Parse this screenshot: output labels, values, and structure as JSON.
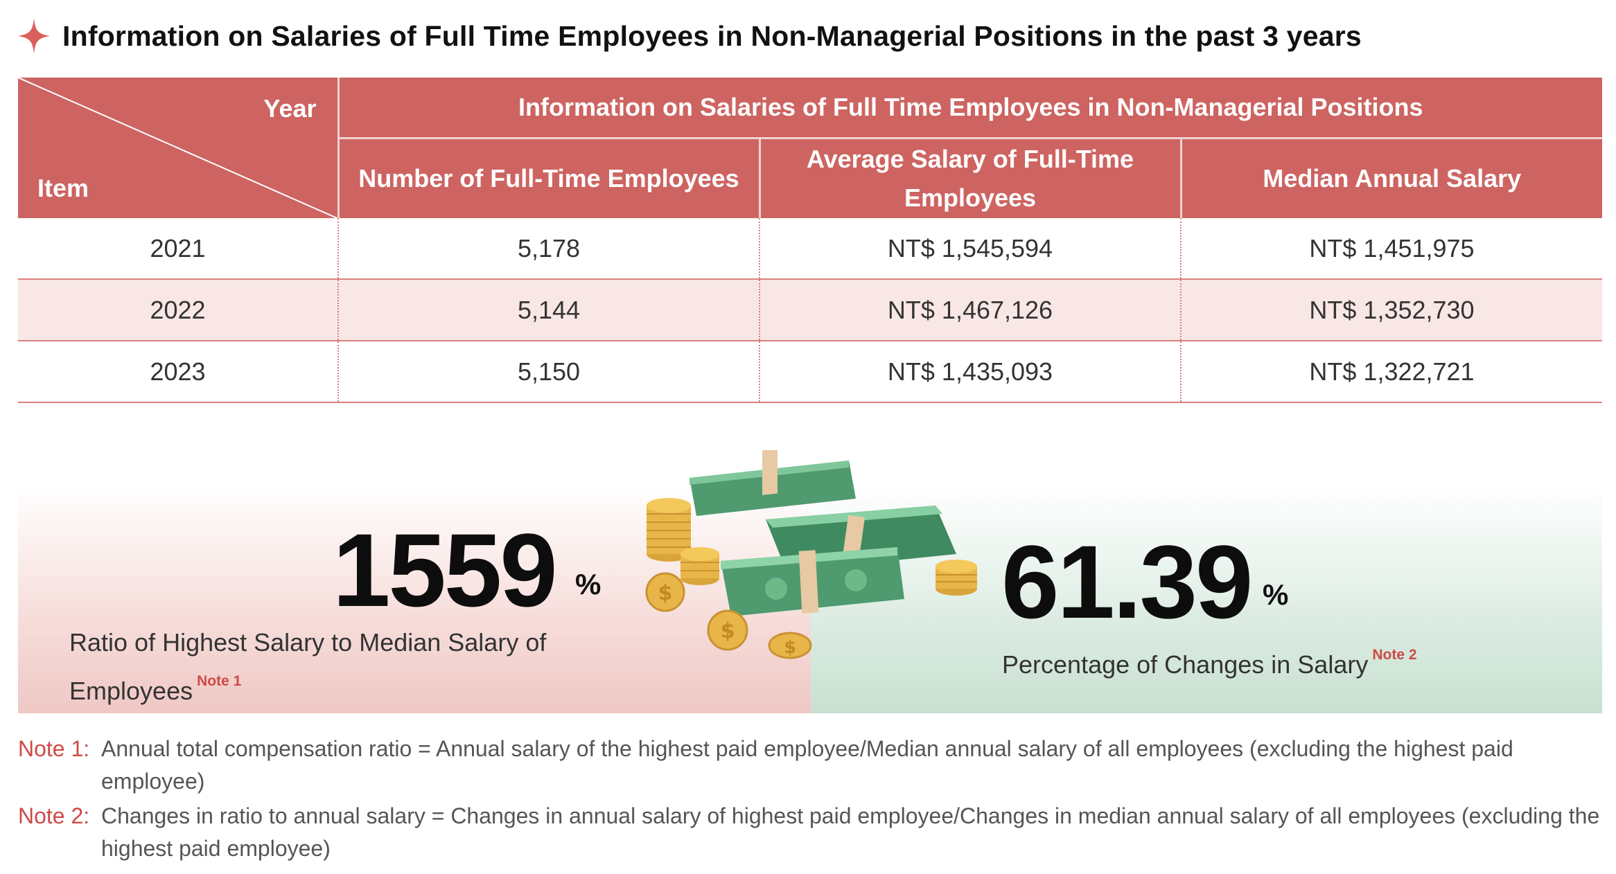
{
  "title": "Information on Salaries of Full Time Employees in Non-Managerial Positions in the past 3 years",
  "table": {
    "corner_year": "Year",
    "corner_item": "Item",
    "group_header": "Information on Salaries of Full Time Employees in Non-Managerial Positions",
    "col_headers": [
      "Number of Full-Time Employees",
      "Average Salary of Full-Time Employees",
      "Median Annual Salary"
    ],
    "rows": [
      {
        "year": "2021",
        "count": "5,178",
        "avg": "NT$ 1,545,594",
        "median": "NT$ 1,451,975"
      },
      {
        "year": "2022",
        "count": "5,144",
        "avg": "NT$ 1,467,126",
        "median": "NT$ 1,352,730"
      },
      {
        "year": "2023",
        "count": "5,150",
        "avg": "NT$ 1,435,093",
        "median": "NT$ 1,322,721"
      }
    ]
  },
  "stats": {
    "left": {
      "value": "1559",
      "unit": "%",
      "label": "Ratio of Highest Salary to Median Salary of Employees",
      "note_ref": "Note 1"
    },
    "right": {
      "value": "61.39",
      "unit": "%",
      "label": "Percentage of Changes in Salary",
      "note_ref": "Note 2"
    }
  },
  "notes": [
    {
      "label": "Note  1:",
      "text": "Annual total compensation ratio = Annual salary of the highest paid employee/Median annual salary of all employees (excluding the highest paid employee)"
    },
    {
      "label": "Note  2:",
      "text": "Changes in ratio to annual salary = Changes in annual salary of highest paid employee/Changes in median annual salary of all employees (excluding the highest paid employee)"
    }
  ],
  "colors": {
    "header_bg": "#cd6461",
    "row_alt_bg": "#f9e7e5",
    "accent_red": "#cd4a47",
    "panel_left": "#efc8c5",
    "panel_right": "#c8e0d1"
  },
  "icons": {
    "title_bullet": "four-point-star-icon",
    "illustration": "money-stacks-and-coins-illustration"
  }
}
